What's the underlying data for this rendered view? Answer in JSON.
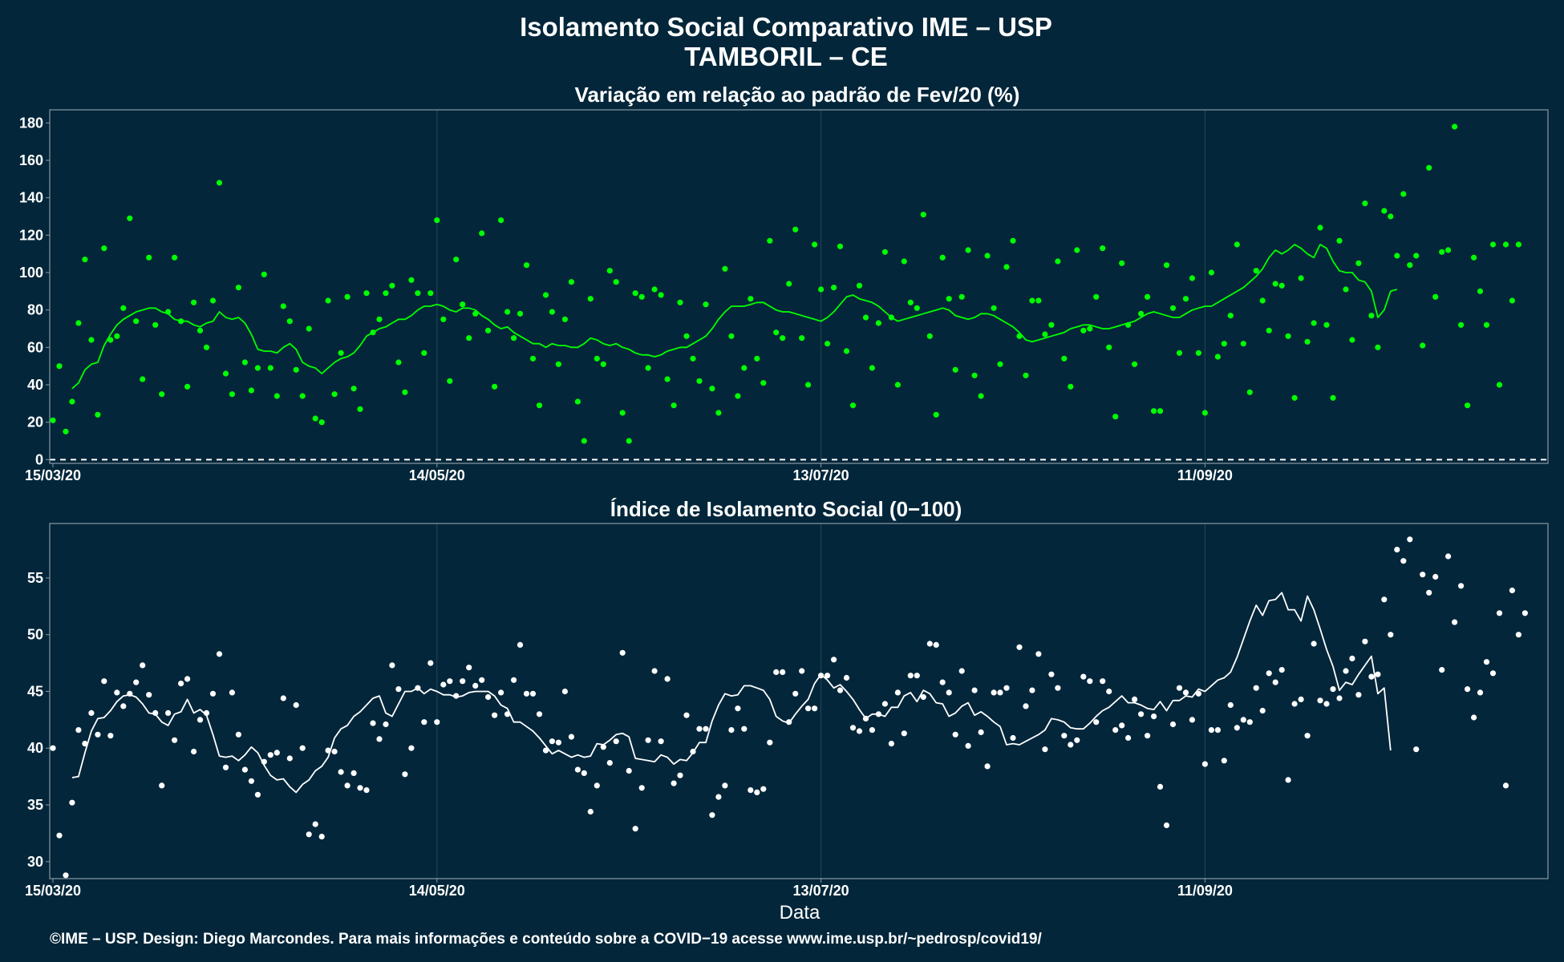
{
  "title_line1": "Isolamento Social Comparativo IME – USP",
  "title_line2": "TAMBORIL – CE",
  "xlabel": "Data",
  "caption": "©IME – USP. Design: Diego Marcondes. Para mais informações e conteúdo sobre a COVID−19 acesse www.ime.usp.br/~pedrosp/covid19/",
  "colors": {
    "background": "#03263a",
    "panel_border": "#8a9aa4",
    "grid": "#24475a",
    "series_top": "#00ff00",
    "series_bottom": "#ffffff",
    "text": "#ffffff"
  },
  "chart_data": [
    {
      "type": "scatter",
      "title": "Variação em relação ao padrão de Fev/20 (%)",
      "x_start": "15/03/20",
      "x_tick_labels": [
        "15/03/20",
        "14/05/20",
        "13/07/20",
        "11/09/20"
      ],
      "yticks": [
        0,
        20,
        40,
        60,
        80,
        100,
        120,
        140,
        160,
        180
      ],
      "ylim": [
        -2,
        187
      ],
      "reference_line": 0,
      "series": [
        {
          "mode": "points",
          "values": [
            21,
            50,
            15,
            31,
            73,
            107,
            64,
            24,
            113,
            64,
            66,
            81,
            129,
            74,
            43,
            108,
            72,
            35,
            79,
            108,
            74,
            39,
            84,
            69,
            60,
            85,
            148,
            46,
            35,
            92,
            52,
            37,
            49,
            99,
            49,
            34,
            82,
            74,
            48,
            34,
            70,
            22,
            20,
            85,
            35,
            57,
            87,
            38,
            27,
            89,
            68,
            75,
            89,
            93,
            52,
            36,
            96,
            89,
            57,
            89,
            128,
            75,
            42,
            107,
            83,
            65,
            78,
            121,
            69,
            39,
            128,
            79,
            65,
            78,
            104,
            54,
            29,
            88,
            79,
            51,
            75,
            95,
            31,
            10,
            86,
            54,
            51,
            101,
            95,
            25,
            10,
            89,
            87,
            49,
            91,
            88,
            43,
            29,
            84,
            66,
            54,
            42,
            83,
            38,
            25,
            102,
            66,
            34,
            49,
            86,
            54,
            41,
            117,
            68,
            65,
            94,
            123,
            65,
            40,
            115,
            91,
            62,
            92,
            114,
            58,
            29,
            93,
            76,
            49,
            73,
            111,
            76,
            40,
            106,
            84,
            81,
            131,
            66,
            24,
            108,
            86,
            48,
            87,
            112,
            45,
            34,
            109,
            81,
            51,
            103,
            117,
            66,
            45,
            85,
            85,
            67,
            72,
            106,
            54,
            39,
            112,
            69,
            70,
            87,
            113,
            60,
            23,
            105,
            72,
            51,
            78,
            87,
            26,
            26,
            104,
            81,
            57,
            86,
            97,
            57,
            25,
            100,
            55,
            62,
            77,
            115,
            62,
            36,
            101,
            85,
            69,
            94,
            93,
            66,
            33,
            97,
            63,
            73,
            124,
            72,
            33,
            117,
            91,
            64,
            105,
            137,
            77,
            60,
            133,
            130,
            109,
            142,
            104,
            109,
            61,
            156,
            87,
            111,
            112,
            178,
            72,
            29,
            108,
            90,
            72,
            115,
            40,
            115,
            85,
            115
          ]
        },
        {
          "mode": "line",
          "values": [
            38,
            41,
            48,
            51,
            52,
            61,
            67,
            72,
            75,
            77,
            79,
            80,
            81,
            81,
            79,
            78,
            75,
            74,
            74,
            72,
            71,
            73,
            74,
            79,
            76,
            75,
            76,
            73,
            67,
            59,
            58,
            58,
            57,
            60,
            62,
            59,
            52,
            50,
            49,
            46,
            49,
            52,
            54,
            55,
            57,
            61,
            66,
            68,
            70,
            71,
            73,
            75,
            75,
            77,
            80,
            82,
            82,
            83,
            82,
            80,
            79,
            81,
            81,
            80,
            77,
            75,
            72,
            70,
            71,
            68,
            66,
            64,
            62,
            62,
            60,
            62,
            61,
            61,
            60,
            60,
            62,
            65,
            64,
            62,
            61,
            62,
            60,
            59,
            57,
            56,
            56,
            55,
            56,
            58,
            59,
            60,
            60,
            62,
            64,
            66,
            70,
            75,
            79,
            82,
            82,
            82,
            83,
            84,
            84,
            82,
            80,
            79,
            79,
            78,
            77,
            76,
            75,
            74,
            76,
            79,
            83,
            87,
            88,
            86,
            85,
            84,
            82,
            79,
            76,
            74,
            75,
            76,
            77,
            78,
            79,
            80,
            81,
            80,
            77,
            76,
            75,
            76,
            78,
            78,
            77,
            75,
            73,
            71,
            68,
            64,
            63,
            64,
            65,
            66,
            67,
            68,
            70,
            71,
            72,
            72,
            71,
            70,
            70,
            71,
            72,
            73,
            74,
            76,
            78,
            79,
            78,
            77,
            76,
            76,
            78,
            80,
            81,
            82,
            82,
            84,
            86,
            88,
            90,
            92,
            95,
            98,
            102,
            108,
            112,
            110,
            112,
            115,
            113,
            110,
            108,
            115,
            113,
            106,
            101,
            100,
            100,
            96,
            95,
            90,
            76,
            80,
            90,
            91
          ]
        }
      ]
    },
    {
      "type": "scatter",
      "title": "Índice de Isolamento Social (0−100)",
      "x_start": "15/03/20",
      "x_tick_labels": [
        "15/03/20",
        "14/05/20",
        "13/07/20",
        "11/09/20"
      ],
      "yticks": [
        30,
        35,
        40,
        45,
        50,
        55
      ],
      "ylim": [
        28.5,
        59.8
      ],
      "series": [
        {
          "mode": "points",
          "values": [
            40,
            32.3,
            28.8,
            35.2,
            41.6,
            40.4,
            43.1,
            41.2,
            45.9,
            41.1,
            44.9,
            43.7,
            44.8,
            45.8,
            47.3,
            44.7,
            43.1,
            36.7,
            43.1,
            40.7,
            45.7,
            46.1,
            39.7,
            42.5,
            43.1,
            44.8,
            48.3,
            38.3,
            44.9,
            41.2,
            38.1,
            37.1,
            35.9,
            38.8,
            39.4,
            39.6,
            44.4,
            39.1,
            43.8,
            40.0,
            32.4,
            33.3,
            32.2,
            39.8,
            39.7,
            37.9,
            36.7,
            37.8,
            36.5,
            36.3,
            42.2,
            40.8,
            42.1,
            47.3,
            45.2,
            37.7,
            40.0,
            45.3,
            42.3,
            47.5,
            42.3,
            45.6,
            45.9,
            44.6,
            45.9,
            47.1,
            45.5,
            46.0,
            44.5,
            42.9,
            44.9,
            43.0,
            46.0,
            49.1,
            44.8,
            44.8,
            43.0,
            39.8,
            40.6,
            40.5,
            45.0,
            41.0,
            38.1,
            37.8,
            34.4,
            36.7,
            40.1,
            38.7,
            40.6,
            48.4,
            38.0,
            32.9,
            36.5,
            40.7,
            46.8,
            40.6,
            46.1,
            36.9,
            37.6,
            42.9,
            39.7,
            41.7,
            41.7,
            34.1,
            35.7,
            36.7,
            41.6,
            43.5,
            41.7,
            36.3,
            36.1,
            36.4,
            40.5,
            46.7,
            46.7,
            42.3,
            44.8,
            46.8,
            43.5,
            43.5,
            46.4,
            46.4,
            47.8,
            45.1,
            46.2,
            41.8,
            41.5,
            42.6,
            41.6,
            43.0,
            43.9,
            40.4,
            44.9,
            41.3,
            46.4,
            46.4,
            44.5,
            49.2,
            49.1,
            45.8,
            44.9,
            41.2,
            46.8,
            40.2,
            45.1,
            41.4,
            38.4,
            44.9,
            44.9,
            45.3,
            40.9,
            48.9,
            43.7,
            45.1,
            48.3,
            39.9,
            46.5,
            45.3,
            41.1,
            40.3,
            40.7,
            46.3,
            45.9,
            42.3,
            45.9,
            45.0,
            41.6,
            42.0,
            40.9,
            44.3,
            43.0,
            41.1,
            42.8,
            36.6,
            33.2,
            42.1,
            45.3,
            44.9,
            42.5,
            44.8,
            38.6,
            41.6,
            41.6,
            38.9,
            43.8,
            41.8,
            42.5,
            42.3,
            45.3,
            43.3,
            46.6,
            45.8,
            46.9,
            37.2,
            43.9,
            44.3,
            41.1,
            49.2,
            44.2,
            43.9,
            45.2,
            44.4,
            46.8,
            47.9,
            44.7,
            49.4,
            46.3,
            46.5,
            53.1,
            50.0,
            57.5,
            56.5,
            58.4,
            39.9,
            55.3,
            53.7,
            55.1,
            46.9,
            56.9,
            51.1,
            54.3,
            45.2,
            42.7,
            44.9,
            47.6,
            46.6,
            51.9,
            36.7,
            53.9,
            50.0,
            51.9
          ]
        },
        {
          "mode": "line",
          "values": [
            37.4,
            37.5,
            39.6,
            41.5,
            42.6,
            42.7,
            43.3,
            44.1,
            44.6,
            44.7,
            44.5,
            43.9,
            43.1,
            43.0,
            42.3,
            42.0,
            43.0,
            43.2,
            44.3,
            43.1,
            43.4,
            42.9,
            41.2,
            39.3,
            39.2,
            39.3,
            38.9,
            39.4,
            40.1,
            39.6,
            38.5,
            37.6,
            37.2,
            37.3,
            36.6,
            36.1,
            36.8,
            37.2,
            38.0,
            38.4,
            39.2,
            40.9,
            41.7,
            42.0,
            42.8,
            43.2,
            43.8,
            44.4,
            44.6,
            43.1,
            42.8,
            43.9,
            45.0,
            45.0,
            45.3,
            44.8,
            45.2,
            45.0,
            44.7,
            44.7,
            44.5,
            44.6,
            44.9,
            45.0,
            45.0,
            45.0,
            44.6,
            43.8,
            43.5,
            42.3,
            42.3,
            41.9,
            41.5,
            40.9,
            40.2,
            39.5,
            39.8,
            39.5,
            39.2,
            39.4,
            39.2,
            39.3,
            40.4,
            40.3,
            40.7,
            41.2,
            41.3,
            41.0,
            39.1,
            39.0,
            38.9,
            38.8,
            39.4,
            39.2,
            38.6,
            39.0,
            38.9,
            39.6,
            40.5,
            40.5,
            42.4,
            43.8,
            44.8,
            44.6,
            44.7,
            45.5,
            45.5,
            45.3,
            45.1,
            44.3,
            42.8,
            42.4,
            42.2,
            43.0,
            43.7,
            44.3,
            45.7,
            46.5,
            46.0,
            45.3,
            45.6,
            45.0,
            44.3,
            43.4,
            42.6,
            43.0,
            43.0,
            42.8,
            43.6,
            43.6,
            44.6,
            44.9,
            44.1,
            45.1,
            44.8,
            44.0,
            43.9,
            42.8,
            43.1,
            43.7,
            44.0,
            42.9,
            43.2,
            42.8,
            42.3,
            41.9,
            40.3,
            40.4,
            40.3,
            40.6,
            40.9,
            41.2,
            41.6,
            42.6,
            42.5,
            42.3,
            41.8,
            41.7,
            41.7,
            42.2,
            42.8,
            43.3,
            43.6,
            44.1,
            44.6,
            44.0,
            44.0,
            43.8,
            43.5,
            43.4,
            44.1,
            43.3,
            44.2,
            44.2,
            44.6,
            44.5,
            45.2,
            45.0,
            45.5,
            46.0,
            46.2,
            46.7,
            48.0,
            49.6,
            51.2,
            52.6,
            51.7,
            53.0,
            53.1,
            53.7,
            52.2,
            52.2,
            51.2,
            53.4,
            52.2,
            50.5,
            48.7,
            47.2,
            45.1,
            45.8,
            45.6,
            46.5,
            47.3,
            48.1,
            44.8,
            45.3,
            39.8
          ]
        }
      ]
    }
  ]
}
